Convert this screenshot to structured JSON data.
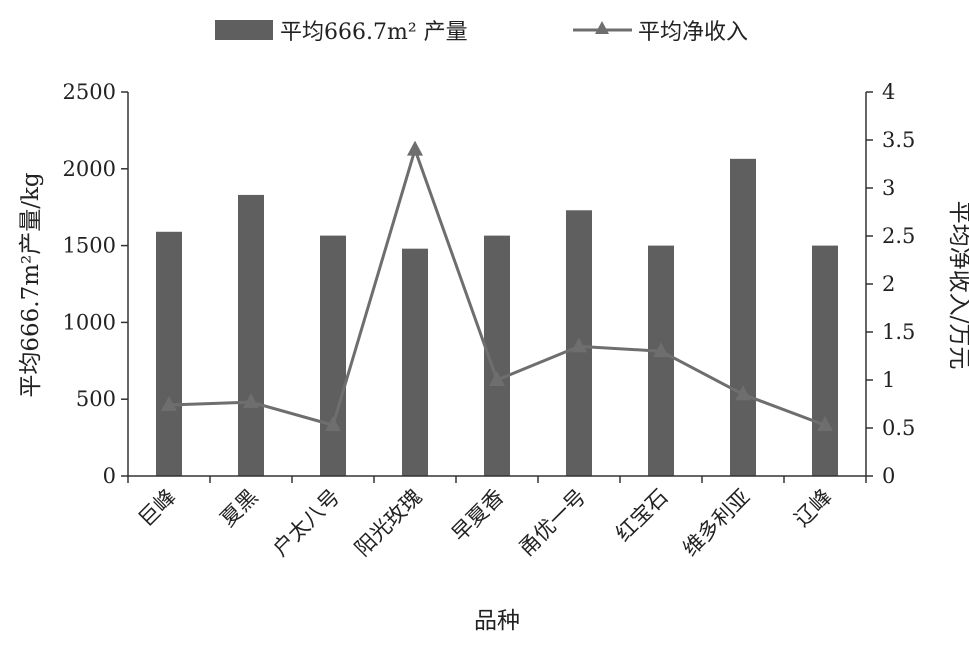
{
  "chart_data": {
    "type": "bar",
    "categories": [
      "巨峰",
      "夏黑",
      "户太八号",
      "阳光玫瑰",
      "早夏香",
      "甬优一号",
      "红宝石",
      "维多利亚",
      "辽峰"
    ],
    "series": [
      {
        "name": "平均666.7m² 产量",
        "type": "bar",
        "axis": "left",
        "values": [
          1590,
          1830,
          1565,
          1480,
          1565,
          1730,
          1500,
          2065,
          1500
        ]
      },
      {
        "name": "平均净收入",
        "type": "line",
        "axis": "right",
        "marker": "triangle",
        "values": [
          0.74,
          0.77,
          0.53,
          3.4,
          1.0,
          1.35,
          1.3,
          0.85,
          0.53
        ]
      }
    ],
    "xlabel": "品种",
    "ylabel": "平均666.7m²产量/kg",
    "y2label": "平均净收入/万元",
    "ylim": [
      0,
      2500
    ],
    "y2lim": [
      0,
      4
    ],
    "yticks": [
      "0",
      "500",
      "1000",
      "1500",
      "2000",
      "2500"
    ],
    "y2ticks": [
      "0",
      "0.5",
      "1",
      "1.5",
      "2",
      "2.5",
      "3",
      "3.5",
      "4"
    ],
    "grid": false,
    "legend_position": "top",
    "colors": {
      "bar": "#5f5f5f",
      "line": "#6e6e6e",
      "axis": "#333333"
    }
  }
}
